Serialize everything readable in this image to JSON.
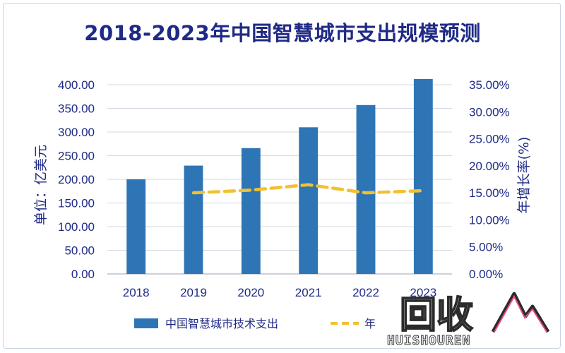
{
  "chart_data": {
    "type": "bar",
    "title": "2018-2023年中国智慧城市支出规模预测",
    "categories": [
      "2018",
      "2019",
      "2020",
      "2021",
      "2022",
      "2023"
    ],
    "series": [
      {
        "name": "中国智慧城市技术支出",
        "type": "bar",
        "axis": "left",
        "color": "#2e75b6",
        "values": [
          200,
          229,
          266,
          310,
          357,
          412
        ]
      },
      {
        "name": "年增长率",
        "type": "line",
        "axis": "right",
        "color": "#f2c12e",
        "dashed": true,
        "values": [
          null,
          15.0,
          15.5,
          16.5,
          15.0,
          15.4
        ]
      }
    ],
    "ylabel": "单位：亿美元",
    "ylabel_right": "年增长率(%)",
    "ylim": [
      0,
      400
    ],
    "ylim_right": [
      0,
      35
    ],
    "y_ticks": [
      "0.00",
      "50.00",
      "100.00",
      "150.00",
      "200.00",
      "250.00",
      "300.00",
      "350.00",
      "400.00"
    ],
    "y_ticks_right": [
      "0.00%",
      "5.00%",
      "10.00%",
      "15.00%",
      "20.00%",
      "25.00%",
      "30.00%",
      "35.00%"
    ],
    "grid": true,
    "legend_position": "bottom",
    "legend": [
      {
        "label": "中国智慧城市技术支出",
        "kind": "bar",
        "color": "#2e75b6"
      },
      {
        "label": "年",
        "kind": "line",
        "color": "#f2c12e"
      }
    ]
  },
  "watermark": {
    "text": "回收",
    "subtext": "HUISHOUREN"
  }
}
